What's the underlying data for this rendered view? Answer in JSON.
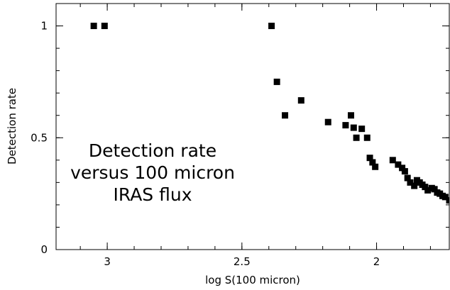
{
  "chart_data": {
    "type": "scatter",
    "title": "",
    "xlabel": "log S(100 micron)",
    "ylabel": "Detection rate",
    "x_reversed": true,
    "xlim": [
      3.19,
      1.73
    ],
    "ylim": [
      0,
      1.1
    ],
    "xticks": [
      3,
      2.5,
      2
    ],
    "xtick_labels": [
      "3",
      "2.5",
      "2"
    ],
    "yticks": [
      0,
      0.5,
      1
    ],
    "ytick_labels": [
      "0",
      "0.5",
      "1"
    ],
    "grid": false,
    "legend": "none",
    "marker": "square",
    "marker_color": "#000000",
    "annotation": [
      "Detection rate",
      "versus 100 micron",
      "IRAS flux"
    ],
    "points": [
      {
        "x": 3.05,
        "y": 1.0
      },
      {
        "x": 3.01,
        "y": 1.0
      },
      {
        "x": 2.39,
        "y": 1.0
      },
      {
        "x": 2.37,
        "y": 0.75
      },
      {
        "x": 2.34,
        "y": 0.6
      },
      {
        "x": 2.28,
        "y": 0.667
      },
      {
        "x": 2.18,
        "y": 0.57
      },
      {
        "x": 2.115,
        "y": 0.556
      },
      {
        "x": 2.095,
        "y": 0.6
      },
      {
        "x": 2.085,
        "y": 0.545
      },
      {
        "x": 2.075,
        "y": 0.5
      },
      {
        "x": 2.055,
        "y": 0.54
      },
      {
        "x": 2.035,
        "y": 0.5
      },
      {
        "x": 2.025,
        "y": 0.41
      },
      {
        "x": 2.015,
        "y": 0.39
      },
      {
        "x": 2.005,
        "y": 0.37
      },
      {
        "x": 1.94,
        "y": 0.4
      },
      {
        "x": 1.92,
        "y": 0.38
      },
      {
        "x": 1.905,
        "y": 0.365
      },
      {
        "x": 1.895,
        "y": 0.35
      },
      {
        "x": 1.885,
        "y": 0.32
      },
      {
        "x": 1.875,
        "y": 0.3
      },
      {
        "x": 1.86,
        "y": 0.285
      },
      {
        "x": 1.85,
        "y": 0.31
      },
      {
        "x": 1.84,
        "y": 0.3
      },
      {
        "x": 1.83,
        "y": 0.29
      },
      {
        "x": 1.82,
        "y": 0.28
      },
      {
        "x": 1.81,
        "y": 0.265
      },
      {
        "x": 1.795,
        "y": 0.275
      },
      {
        "x": 1.785,
        "y": 0.27
      },
      {
        "x": 1.775,
        "y": 0.255
      },
      {
        "x": 1.765,
        "y": 0.25
      },
      {
        "x": 1.755,
        "y": 0.24
      },
      {
        "x": 1.745,
        "y": 0.235
      },
      {
        "x": 1.73,
        "y": 0.22
      }
    ]
  }
}
